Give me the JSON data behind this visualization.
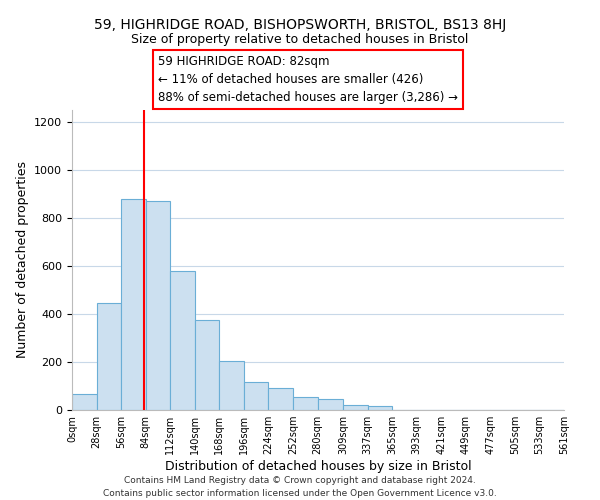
{
  "title": "59, HIGHRIDGE ROAD, BISHOPSWORTH, BRISTOL, BS13 8HJ",
  "subtitle": "Size of property relative to detached houses in Bristol",
  "xlabel": "Distribution of detached houses by size in Bristol",
  "ylabel": "Number of detached properties",
  "bin_edges": [
    0,
    28,
    56,
    84,
    112,
    140,
    168,
    196,
    224,
    252,
    280,
    309,
    337,
    365,
    393,
    421,
    449,
    477,
    505,
    533,
    561
  ],
  "bar_heights": [
    65,
    445,
    880,
    870,
    580,
    375,
    205,
    115,
    90,
    55,
    45,
    22,
    15,
    0,
    0,
    0,
    0,
    0,
    0,
    0
  ],
  "bar_color": "#cce0f0",
  "bar_edge_color": "#6aaed6",
  "property_line_x": 82,
  "annotation_line1": "59 HIGHRIDGE ROAD: 82sqm",
  "annotation_line2": "← 11% of detached houses are smaller (426)",
  "annotation_line3": "88% of semi-detached houses are larger (3,286) →",
  "ylim": [
    0,
    1250
  ],
  "yticks": [
    0,
    200,
    400,
    600,
    800,
    1000,
    1200
  ],
  "tick_labels": [
    "0sqm",
    "28sqm",
    "56sqm",
    "84sqm",
    "112sqm",
    "140sqm",
    "168sqm",
    "196sqm",
    "224sqm",
    "252sqm",
    "280sqm",
    "309sqm",
    "337sqm",
    "365sqm",
    "393sqm",
    "421sqm",
    "449sqm",
    "477sqm",
    "505sqm",
    "533sqm",
    "561sqm"
  ],
  "footer_text": "Contains HM Land Registry data © Crown copyright and database right 2024.\nContains public sector information licensed under the Open Government Licence v3.0.",
  "bg_color": "#ffffff",
  "grid_color": "#c8d8e8"
}
